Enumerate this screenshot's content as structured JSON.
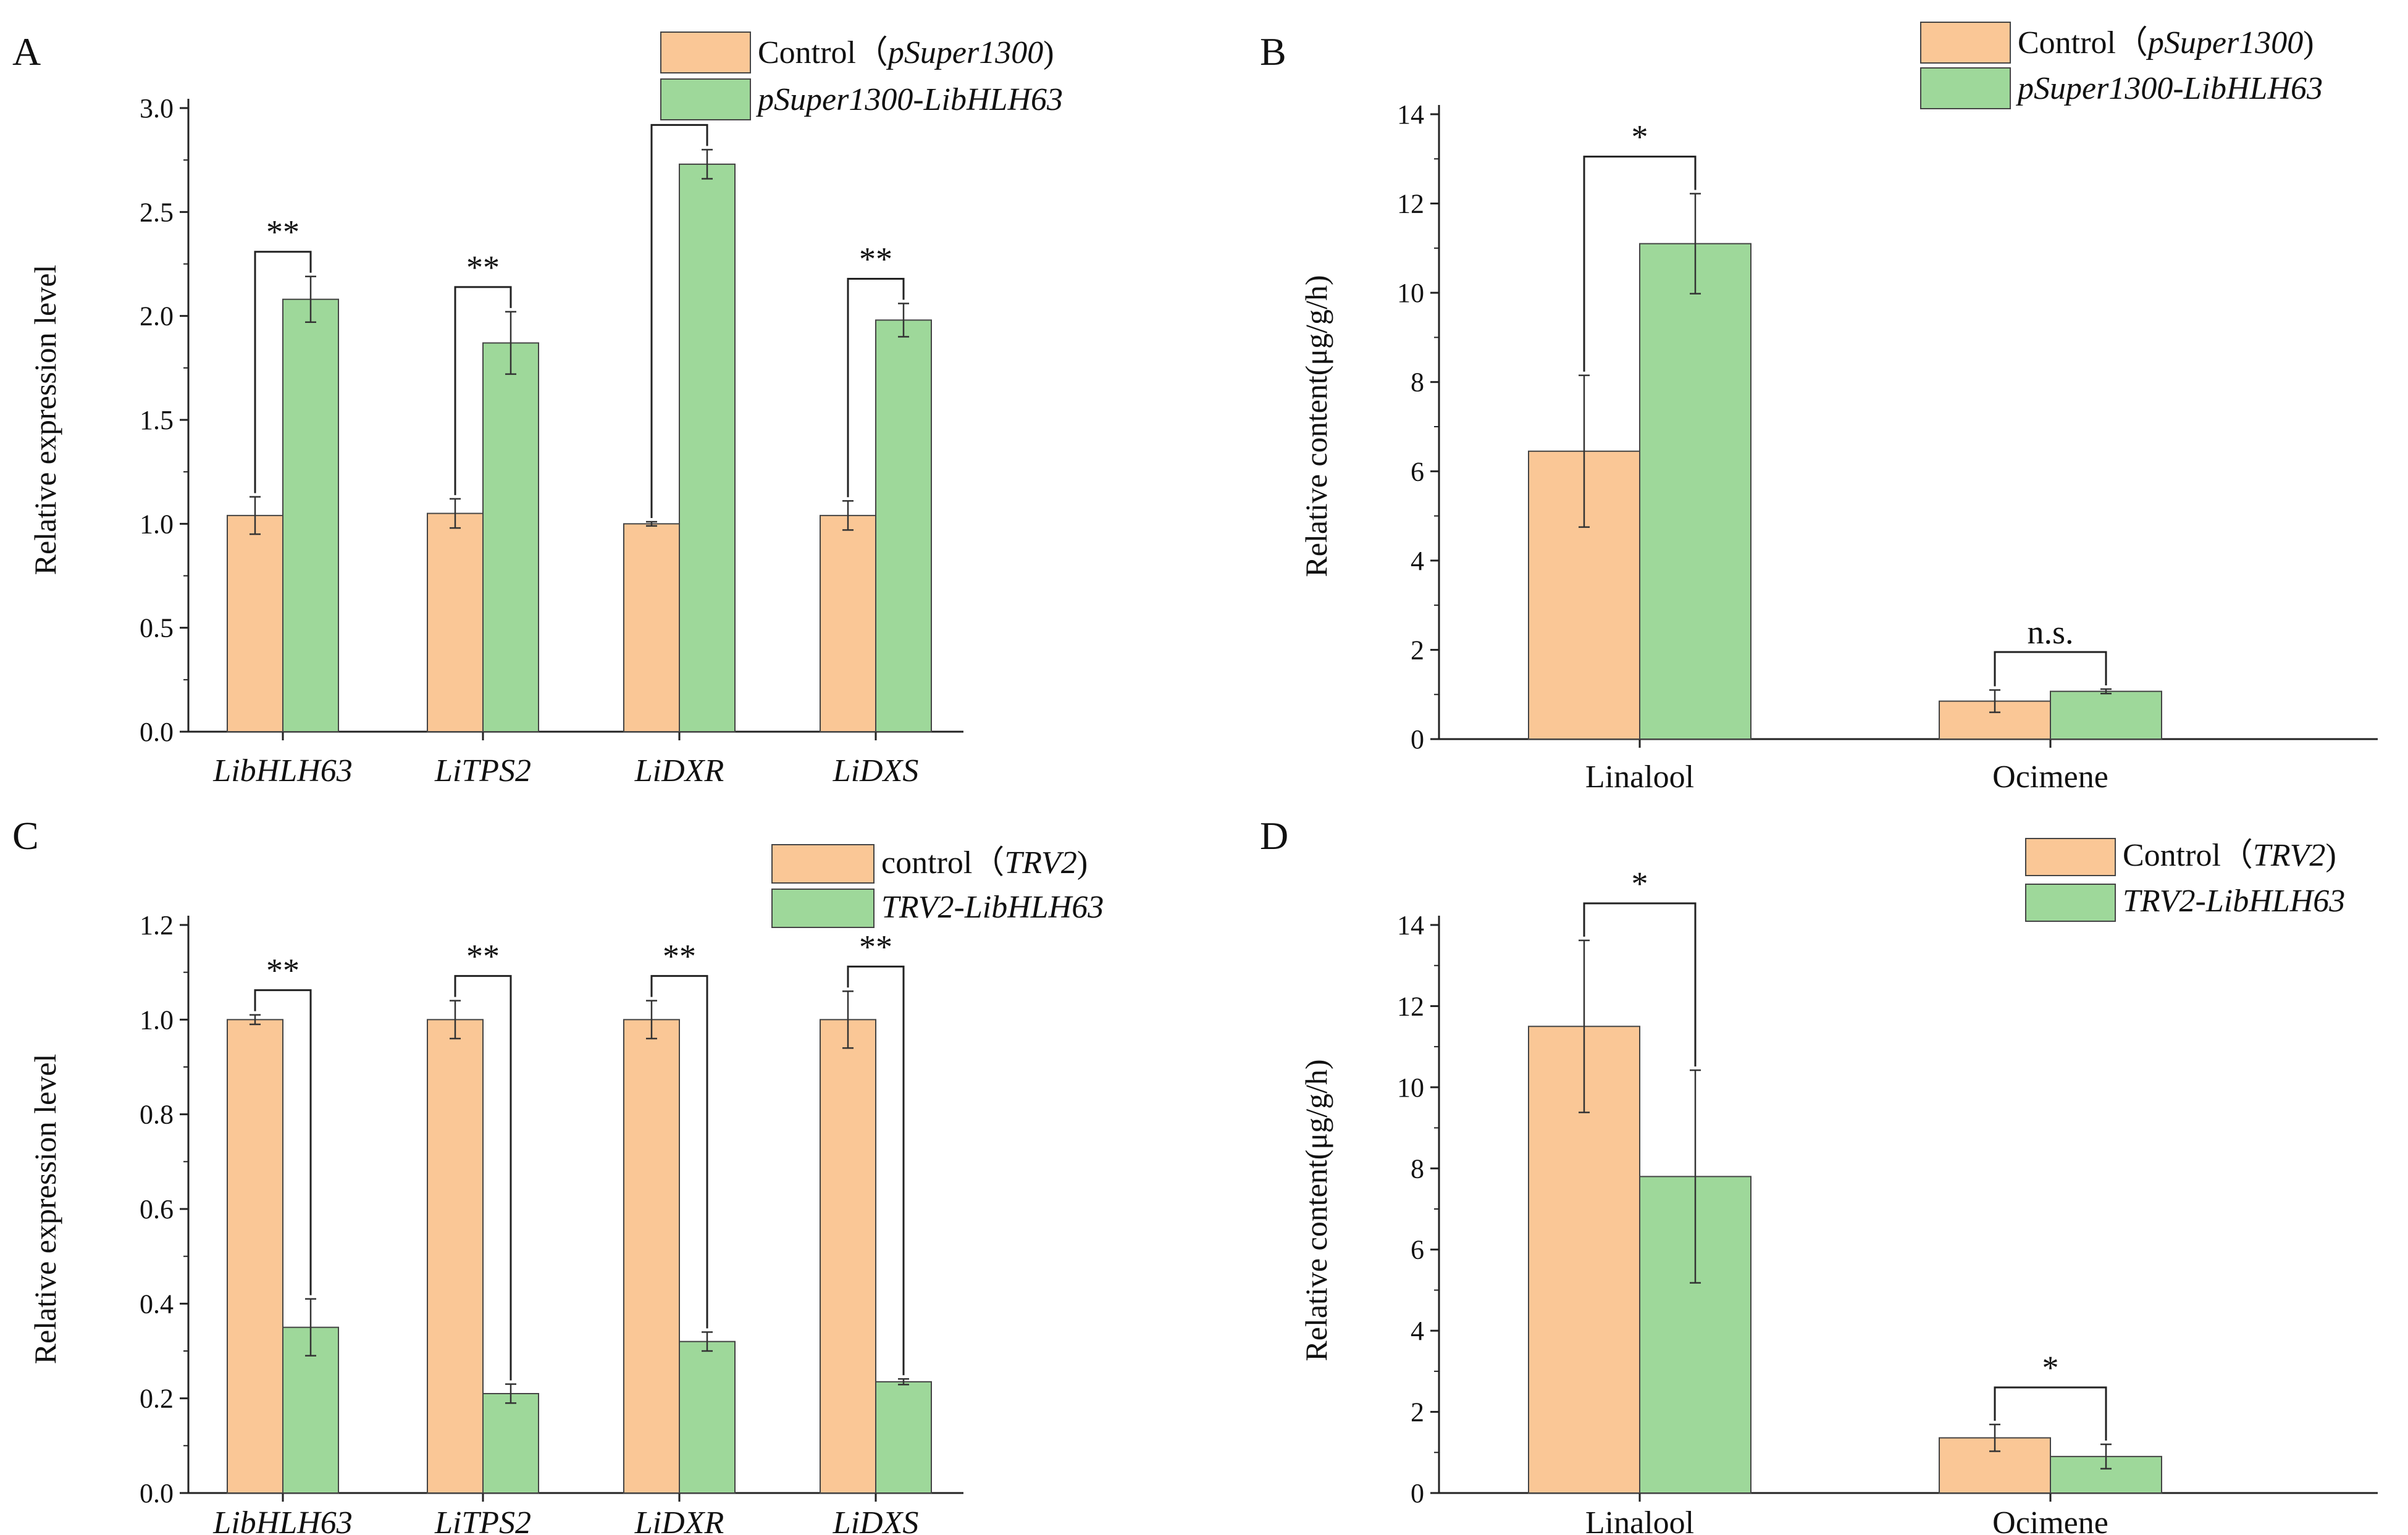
{
  "chart_data": [
    {
      "panel": "A",
      "type": "bar",
      "categories": [
        "LibHLH63",
        "LiTPS2",
        "LiDXR",
        "LiDXS"
      ],
      "categories_italic": true,
      "ylabel": "Relative expression level",
      "ylim": [
        0,
        3.0
      ],
      "yticks": [
        "0.0",
        "0.5",
        "1.0",
        "1.5",
        "2.0",
        "2.5",
        "3.0"
      ],
      "series": [
        {
          "name": "Control",
          "name_suffix": "pSuper1300",
          "values": [
            1.04,
            1.05,
            1.0,
            1.04
          ],
          "errors": [
            0.09,
            0.07,
            0.01,
            0.07
          ],
          "color": "#FAC796"
        },
        {
          "name": "",
          "name_suffix": "pSuper1300-LibHLH63",
          "values": [
            2.08,
            1.87,
            2.73,
            1.98
          ],
          "errors": [
            0.11,
            0.15,
            0.07,
            0.08
          ],
          "color": "#9ED89A"
        }
      ],
      "significance": [
        "**",
        "**",
        "**",
        "**"
      ]
    },
    {
      "panel": "B",
      "type": "bar",
      "categories": [
        "Linalool",
        "Ocimene"
      ],
      "categories_italic": false,
      "ylabel": "Relative content(μg/g/h)",
      "ylim": [
        0,
        14
      ],
      "yticks": [
        "0",
        "2",
        "4",
        "6",
        "8",
        "10",
        "12",
        "14"
      ],
      "series": [
        {
          "name": "Control",
          "name_suffix": "pSuper1300",
          "values": [
            6.45,
            0.85
          ],
          "errors": [
            1.7,
            0.25
          ],
          "color": "#FAC796"
        },
        {
          "name": "",
          "name_suffix": "pSuper1300-LibHLH63",
          "values": [
            11.1,
            1.07
          ],
          "errors": [
            1.12,
            0.05
          ],
          "color": "#9ED89A"
        }
      ],
      "significance": [
        "*",
        "n.s."
      ]
    },
    {
      "panel": "C",
      "type": "bar",
      "categories": [
        "LibHLH63",
        "LiTPS2",
        "LiDXR",
        "LiDXS"
      ],
      "categories_italic": true,
      "ylabel": "Relative expression level",
      "ylim": [
        0,
        1.2
      ],
      "yticks": [
        "0.0",
        "0.2",
        "0.4",
        "0.6",
        "0.8",
        "1.0",
        "1.2"
      ],
      "series": [
        {
          "name": "control",
          "name_suffix": "TRV2",
          "values": [
            1.0,
            1.0,
            1.0,
            1.0
          ],
          "errors": [
            0.01,
            0.04,
            0.04,
            0.06
          ],
          "color": "#FAC796"
        },
        {
          "name": "",
          "name_suffix": "TRV2-LibHLH63",
          "values": [
            0.35,
            0.21,
            0.32,
            0.235
          ],
          "errors": [
            0.06,
            0.02,
            0.02,
            0.006
          ],
          "color": "#9ED89A"
        }
      ],
      "significance": [
        "**",
        "**",
        "**",
        "**"
      ]
    },
    {
      "panel": "D",
      "type": "bar",
      "categories": [
        "Linalool",
        "Ocimene"
      ],
      "categories_italic": false,
      "ylabel": "Relative content(μg/g/h)",
      "ylim": [
        0,
        14
      ],
      "yticks": [
        "0",
        "2",
        "4",
        "6",
        "8",
        "10",
        "12",
        "14"
      ],
      "series": [
        {
          "name": "Control",
          "name_suffix": "TRV2",
          "values": [
            11.5,
            1.36
          ],
          "errors": [
            2.12,
            0.33
          ],
          "color": "#FAC796"
        },
        {
          "name": "",
          "name_suffix": "TRV2-LibHLH63",
          "values": [
            7.8,
            0.9
          ],
          "errors": [
            2.62,
            0.3
          ],
          "color": "#9ED89A"
        }
      ],
      "significance": [
        "*",
        "*"
      ]
    }
  ]
}
